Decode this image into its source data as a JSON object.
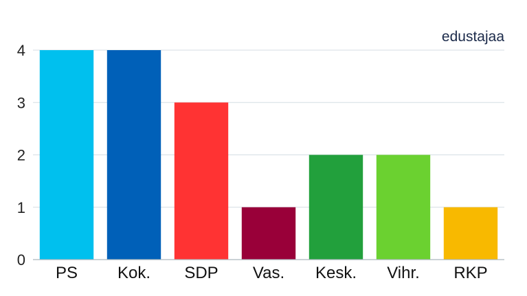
{
  "chart_data": {
    "type": "bar",
    "categories": [
      "PS",
      "Kok.",
      "SDP",
      "Vas.",
      "Kesk.",
      "Vihr.",
      "RKP"
    ],
    "values": [
      4,
      4,
      3,
      1,
      2,
      2,
      1
    ],
    "colors": [
      "#00c0ee",
      "#0060b8",
      "#ff3333",
      "#990039",
      "#22a03c",
      "#6bd130",
      "#f8b900"
    ],
    "unit_label": "edustajaa",
    "ylim": [
      0,
      4
    ],
    "yticks": [
      0,
      1,
      2,
      3,
      4
    ],
    "grid": true,
    "title": "",
    "xlabel": "",
    "ylabel": ""
  }
}
